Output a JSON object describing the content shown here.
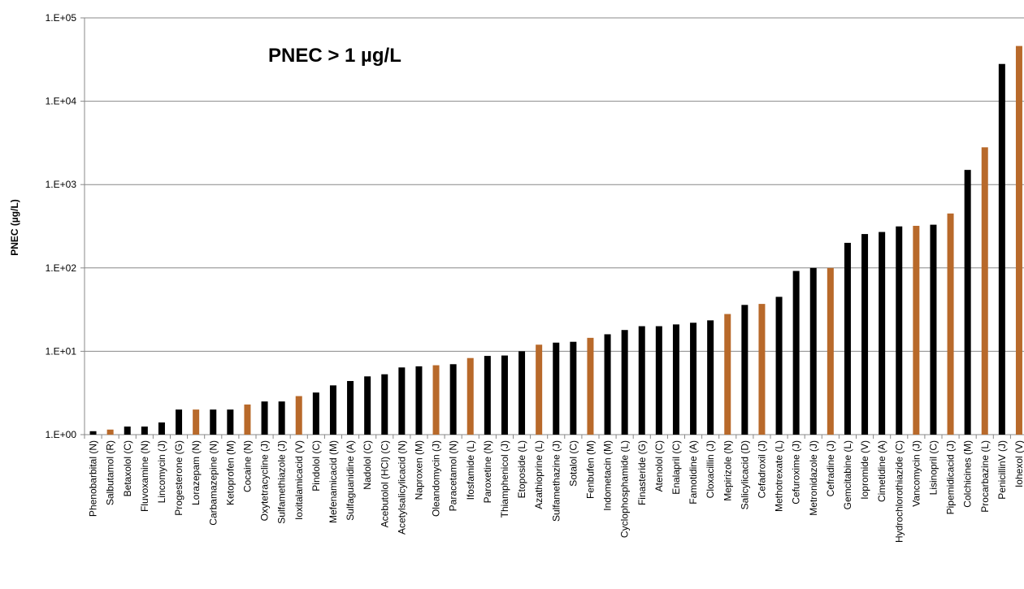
{
  "chart_data": {
    "type": "bar",
    "title": "PNEC > 1 µg/L",
    "y_label": "PNEC (µg/L)",
    "log_y": true,
    "grid": true,
    "categories": [
      "Phenobarbital (N)",
      "Salbutamol (R)",
      "Betaxolol (C)",
      "Fluvoxamine (N)",
      "Lincomycin (J)",
      "Progesterone (G)",
      "Lorazepam (N)",
      "Carbamazepine (N)",
      "Ketoprofen (M)",
      "Cocaine (N)",
      "Oxytetracycline (J)",
      "Sulfamethiazole (J)",
      "Ioxitalamicacid (V)",
      "Pindolol (C)",
      "Mefenamicacid (M)",
      "Sulfaguanidine (A)",
      "Nadolol (C)",
      "Acebutolol (HCl) (C)",
      "Acetylsalicylicacid (N)",
      "Naproxen (M)",
      "Oleandomycin (J)",
      "Paracetamol (N)",
      "Ifosfamide (L)",
      "Paroxetine (N)",
      "Thiamphenicol (J)",
      "Etoposide (L)",
      "Azathioprine (L)",
      "Sulfamethazine (J)",
      "Sotalol (C)",
      "Fenbufen (M)",
      "Indometacin (M)",
      "Cyclophosphamide (L)",
      "Finasteride (G)",
      "Atenolol (C)",
      "Enalapril (C)",
      "Famotidine (A)",
      "Cloxacillin (J)",
      "Mepirizole (N)",
      "Salicylicacid (D)",
      "Cefadroxil (J)",
      "Methotrexate (L)",
      "Cefuroxime (J)",
      "Metronidazole (J)",
      "Cefradine (J)",
      "Gemcitabine (L)",
      "Iopromide (V)",
      "Cimetidine (A)",
      "Hydrochlorothiazide (C)",
      "Vancomycin (J)",
      "Lisinopril (C)",
      "Pipemidicacid (J)",
      "Colchicines (M)",
      "Procarbazine (L)",
      "PenicillinV (J)",
      "Iohexol (V)"
    ],
    "values": [
      1.1,
      1.15,
      1.25,
      1.25,
      1.4,
      2,
      2,
      2,
      2,
      2.3,
      2.5,
      2.5,
      2.9,
      3.2,
      3.9,
      4.4,
      5,
      5.3,
      6.4,
      6.6,
      6.8,
      7,
      8.3,
      8.8,
      8.9,
      10,
      12,
      12.7,
      13,
      14.5,
      16,
      18,
      20,
      20,
      21,
      22,
      23.5,
      28,
      36,
      37,
      45,
      92,
      100,
      100,
      200,
      255,
      270,
      315,
      320,
      330,
      450,
      1500,
      2800,
      28000,
      46000
    ],
    "colors": [
      "#000000",
      "#b8692a",
      "#000000",
      "#000000",
      "#000000",
      "#000000",
      "#b8692a",
      "#000000",
      "#000000",
      "#b8692a",
      "#000000",
      "#000000",
      "#b8692a",
      "#000000",
      "#000000",
      "#000000",
      "#000000",
      "#000000",
      "#000000",
      "#000000",
      "#b8692a",
      "#000000",
      "#b8692a",
      "#000000",
      "#000000",
      "#000000",
      "#b8692a",
      "#000000",
      "#000000",
      "#b8692a",
      "#000000",
      "#000000",
      "#000000",
      "#000000",
      "#000000",
      "#000000",
      "#000000",
      "#b8692a",
      "#000000",
      "#b8692a",
      "#000000",
      "#000000",
      "#000000",
      "#b8692a",
      "#000000",
      "#000000",
      "#000000",
      "#000000",
      "#b8692a",
      "#000000",
      "#b8692a",
      "#000000",
      "#b8692a",
      "#000000",
      "#b8692a"
    ],
    "ylim": [
      1,
      100000
    ],
    "yticks": [
      {
        "value": 1,
        "label": "1.E+00"
      },
      {
        "value": 10,
        "label": "1.E+01"
      },
      {
        "value": 100,
        "label": "1.E+02"
      },
      {
        "value": 1000,
        "label": "1.E+03"
      },
      {
        "value": 10000,
        "label": "1.E+04"
      },
      {
        "value": 100000,
        "label": "1.E+05"
      }
    ]
  }
}
